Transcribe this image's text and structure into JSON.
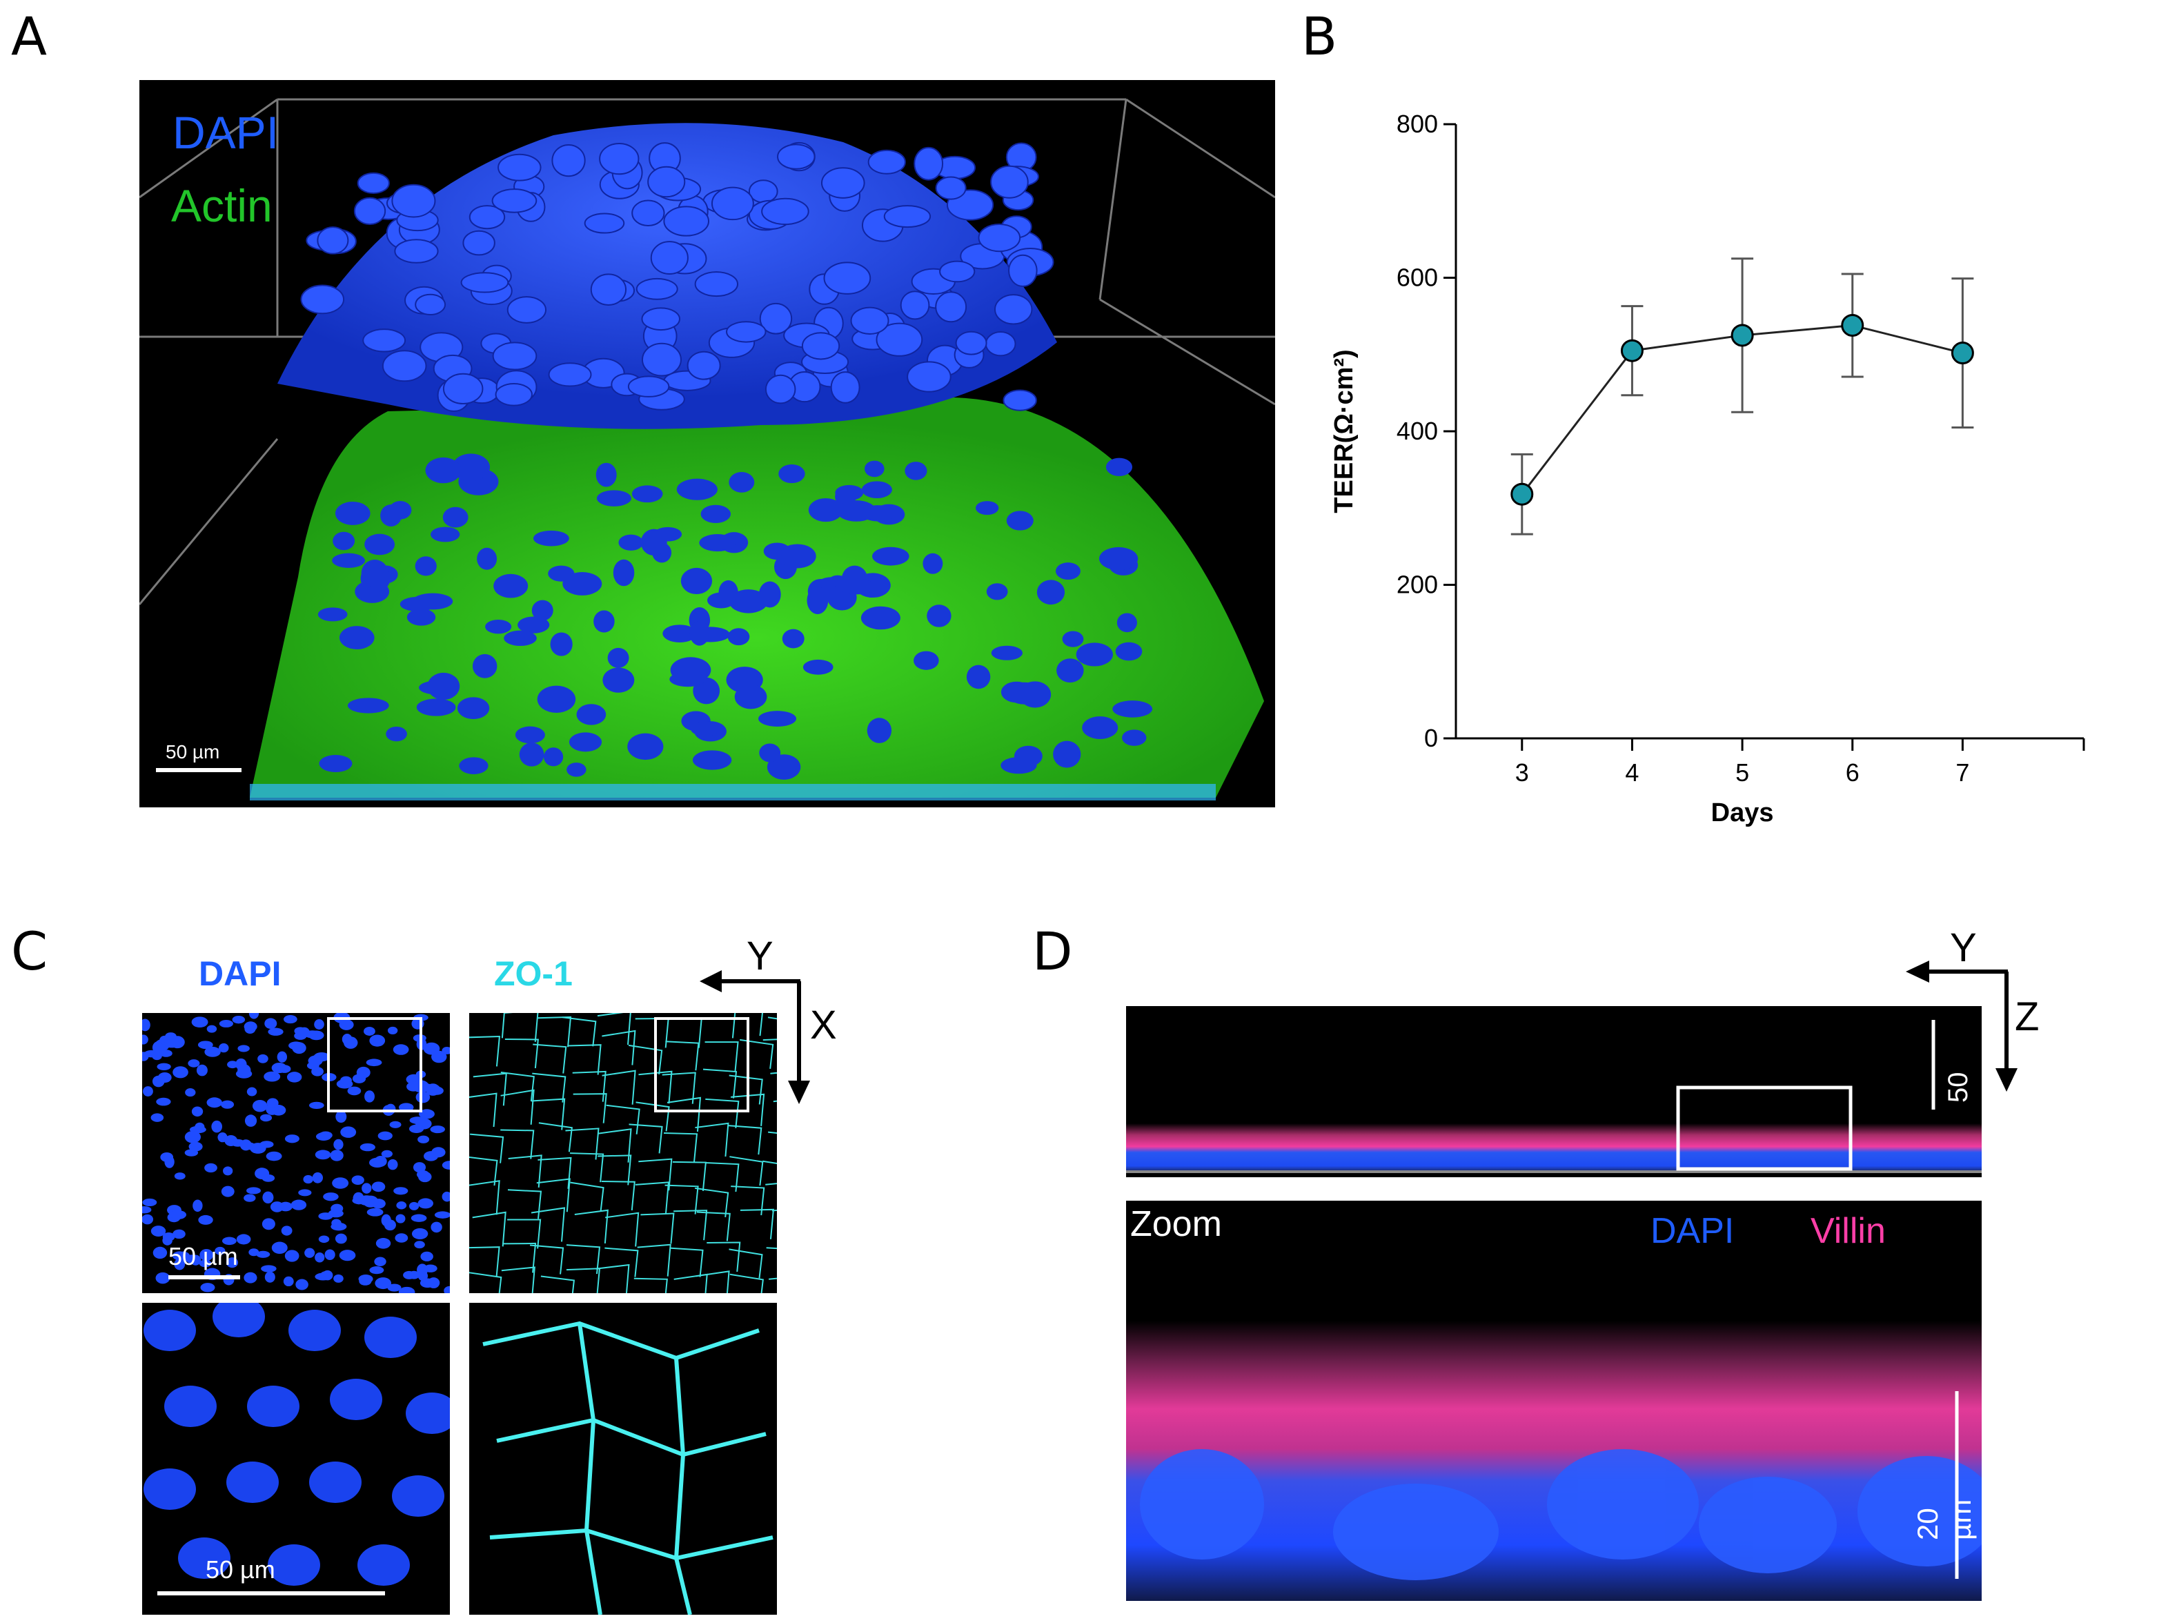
{
  "panels": {
    "a": {
      "letter": "A",
      "legend": [
        "DAPI",
        "Actin"
      ],
      "scalebar": "50 µm"
    },
    "b": {
      "letter": "B"
    },
    "c": {
      "letter": "C",
      "dapi_title": "DAPI",
      "zo1_title": "ZO-1",
      "axis_y": "Y",
      "axis_x": "X",
      "scalebar_top": "50 µm",
      "scalebar_bottom": "50 µm"
    },
    "d": {
      "letter": "D",
      "axis_y": "Y",
      "axis_z": "Z",
      "scalebar_top": "50 µm",
      "zoom_label": "Zoom",
      "legend_dapi": "DAPI",
      "legend_villin": "Villin",
      "scalebar_bottom": "20 µm"
    }
  },
  "colors": {
    "dapi": "#1a4bff",
    "actin": "#22cc22",
    "zo1": "#3fe0e0",
    "villin": "#ff3fa8",
    "marker": "#1b9aaa"
  },
  "chart_data": {
    "type": "line",
    "xlabel": "Days",
    "ylabel": "TEER(Ω·cm²)",
    "x": [
      3,
      4,
      5,
      6,
      7
    ],
    "xticks": [
      3,
      4,
      5,
      6,
      7
    ],
    "xlim": [
      2.4,
      8.1
    ],
    "yticks": [
      0,
      200,
      400,
      600,
      800
    ],
    "ylim": [
      0,
      800
    ],
    "series": [
      {
        "values": [
          318,
          505,
          525,
          538,
          502
        ],
        "error": [
          52,
          58,
          100,
          67,
          97
        ]
      }
    ]
  }
}
